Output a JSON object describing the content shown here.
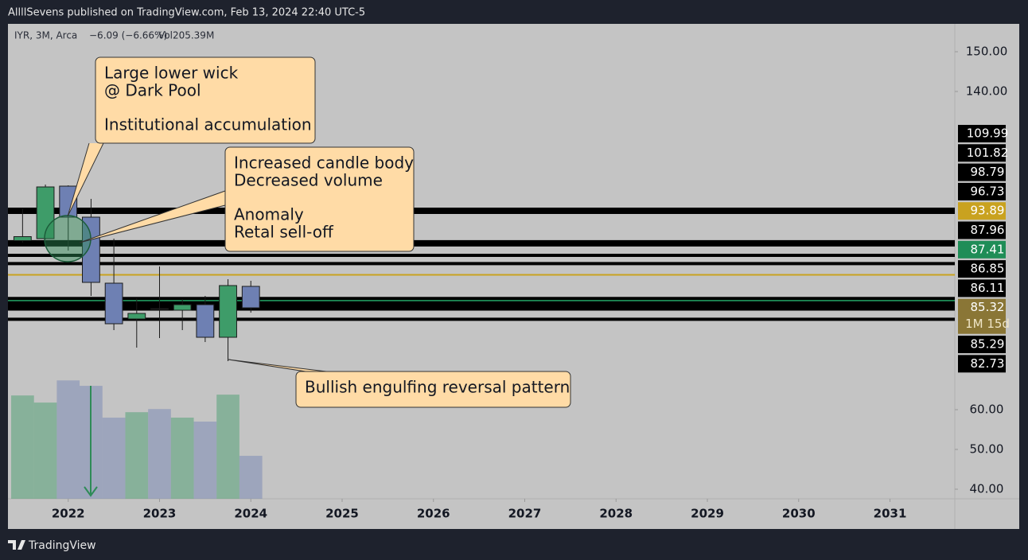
{
  "chart_data": {
    "type": "candlestick",
    "title": "AllllSevens published on TradingView.com, Feb 13, 2024 22:40 UTC-5",
    "symbol": "IYR, 3M, Arca",
    "change": "−6.09 (−6.66%)",
    "volume_label": "Vol205.39M",
    "footer": "TradingView",
    "x": [
      2021.5,
      2021.75,
      2022,
      2022.25,
      2022.5,
      2022.75,
      2023,
      2023.25,
      2023.5,
      2023.75,
      2024
    ],
    "open": [
      102.5,
      103,
      116.2,
      108.4,
      91.8,
      82.8,
      85.4,
      85,
      86.4,
      78.2,
      91
    ],
    "high": [
      110.6,
      116.6,
      116.4,
      113,
      103,
      88,
      96,
      87.8,
      88.6,
      92.8,
      92.4
    ],
    "low": [
      102,
      102.8,
      100,
      88.6,
      80,
      75.6,
      78,
      80,
      77,
      72.2,
      84.4
    ],
    "close": [
      103.5,
      116,
      108.4,
      92,
      81.6,
      84.2,
      85.2,
      86.4,
      78.2,
      91.2,
      85.6
    ],
    "volume": [
      494,
      460,
      566,
      540,
      388,
      414,
      429,
      388,
      369,
      498,
      205.39
    ],
    "up_color": "#3e9c69",
    "down_color": "#6e80b3",
    "xlim": [
      2021.34,
      2031.71
    ],
    "xticks": [
      2022,
      2023,
      2024,
      2025,
      2026,
      2027,
      2028,
      2029,
      2030,
      2031
    ],
    "ylim": [
      37.6,
      157
    ],
    "yticks": [
      {
        "value": 150,
        "label": "150.00"
      },
      {
        "value": 140,
        "label": "140.00"
      },
      {
        "value": 60,
        "label": "60.00"
      },
      {
        "value": 50,
        "label": "50.00"
      },
      {
        "value": 40,
        "label": "40.00"
      }
    ],
    "vlim": [
      0,
      700
    ],
    "levels": [
      {
        "value": 109.99,
        "color": "#000000"
      },
      {
        "value": 101.82,
        "color": "#000000"
      },
      {
        "value": 98.79,
        "color": "#000000"
      },
      {
        "value": 96.73,
        "color": "#000000"
      },
      {
        "value": 93.89,
        "color": "#c9a21f"
      },
      {
        "value": 87.96,
        "color": "#000000"
      },
      {
        "value": 87.41,
        "color": "#1f8d57"
      },
      {
        "value": 86.85,
        "color": "#000000"
      },
      {
        "value": 86.11,
        "color": "#000000"
      },
      {
        "value": 85.32,
        "color": "#8a7636",
        "countdown": "1M 15d"
      },
      {
        "value": 85.29,
        "color": "#000000"
      },
      {
        "value": 82.73,
        "color": "#000000"
      }
    ],
    "annotations": [
      {
        "blocks": [
          [
            "Large lower wick",
            "@ Dark Pool"
          ],
          [
            "Institutional accumulation"
          ]
        ]
      },
      {
        "blocks": [
          [
            "Increased candle body",
            "Decreased volume"
          ],
          [
            "Anomaly",
            "Retal sell-off"
          ]
        ]
      },
      {
        "blocks": [
          [
            "Bullish engulfing reversal pattern"
          ]
        ]
      }
    ]
  }
}
